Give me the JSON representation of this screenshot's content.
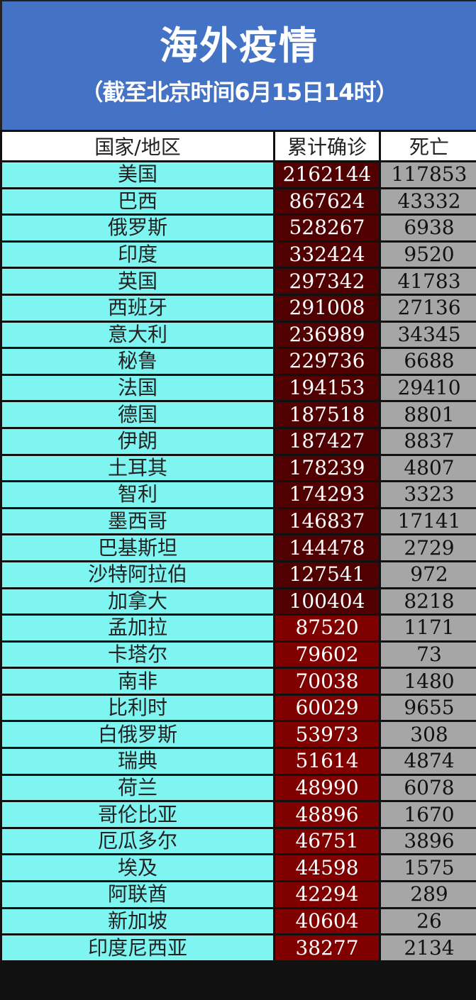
{
  "header": {
    "title": "海外疫情",
    "subtitle": "（截至北京时间6月15日14时）"
  },
  "table": {
    "columns": [
      "国家/地区",
      "累计确诊",
      "死亡"
    ],
    "colors": {
      "banner": "#4472c4",
      "country_cell": "#7ff5f1",
      "confirmed_high": "#500000",
      "confirmed_low": "#800000",
      "death_cell": "#a6a6a6"
    },
    "rows": [
      {
        "country": "美国",
        "confirmed": "2162144",
        "deaths": "117853"
      },
      {
        "country": "巴西",
        "confirmed": "867624",
        "deaths": "43332"
      },
      {
        "country": "俄罗斯",
        "confirmed": "528267",
        "deaths": "6938"
      },
      {
        "country": "印度",
        "confirmed": "332424",
        "deaths": "9520"
      },
      {
        "country": "英国",
        "confirmed": "297342",
        "deaths": "41783"
      },
      {
        "country": "西班牙",
        "confirmed": "291008",
        "deaths": "27136"
      },
      {
        "country": "意大利",
        "confirmed": "236989",
        "deaths": "34345"
      },
      {
        "country": "秘鲁",
        "confirmed": "229736",
        "deaths": "6688"
      },
      {
        "country": "法国",
        "confirmed": "194153",
        "deaths": "29410"
      },
      {
        "country": "德国",
        "confirmed": "187518",
        "deaths": "8801"
      },
      {
        "country": "伊朗",
        "confirmed": "187427",
        "deaths": "8837"
      },
      {
        "country": "土耳其",
        "confirmed": "178239",
        "deaths": "4807"
      },
      {
        "country": "智利",
        "confirmed": "174293",
        "deaths": "3323"
      },
      {
        "country": "墨西哥",
        "confirmed": "146837",
        "deaths": "17141"
      },
      {
        "country": "巴基斯坦",
        "confirmed": "144478",
        "deaths": "2729"
      },
      {
        "country": "沙特阿拉伯",
        "confirmed": "127541",
        "deaths": "972"
      },
      {
        "country": "加拿大",
        "confirmed": "100404",
        "deaths": "8218"
      },
      {
        "country": "孟加拉",
        "confirmed": "87520",
        "deaths": "1171"
      },
      {
        "country": "卡塔尔",
        "confirmed": "79602",
        "deaths": "73"
      },
      {
        "country": "南非",
        "confirmed": "70038",
        "deaths": "1480"
      },
      {
        "country": "比利时",
        "confirmed": "60029",
        "deaths": "9655"
      },
      {
        "country": "白俄罗斯",
        "confirmed": "53973",
        "deaths": "308"
      },
      {
        "country": "瑞典",
        "confirmed": "51614",
        "deaths": "4874"
      },
      {
        "country": "荷兰",
        "confirmed": "48990",
        "deaths": "6078"
      },
      {
        "country": "哥伦比亚",
        "confirmed": "48896",
        "deaths": "1670"
      },
      {
        "country": "厄瓜多尔",
        "confirmed": "46751",
        "deaths": "3896"
      },
      {
        "country": "埃及",
        "confirmed": "44598",
        "deaths": "1575"
      },
      {
        "country": "阿联酋",
        "confirmed": "42294",
        "deaths": "289"
      },
      {
        "country": "新加坡",
        "confirmed": "40604",
        "deaths": "26"
      },
      {
        "country": "印度尼西亚",
        "confirmed": "38277",
        "deaths": "2134"
      }
    ]
  }
}
